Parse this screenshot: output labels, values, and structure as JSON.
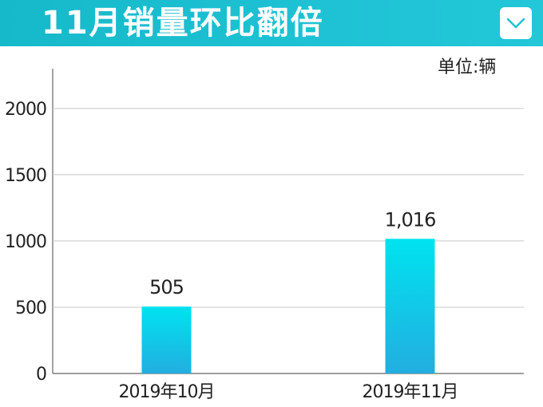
{
  "header": {
    "title": "11月销量环比翻倍",
    "menu_icon": "chevron-down-icon"
  },
  "unit_label": "单位:辆",
  "colors": {
    "header_bg": "#1ec2d4",
    "bar_top": "#00e3f0",
    "bar_bottom": "#22aee0",
    "grid": "#c8c8c8",
    "axis": "#666666"
  },
  "chart_data": {
    "type": "bar",
    "categories": [
      "2019年10月",
      "2019年11月"
    ],
    "values": [
      505,
      1016
    ],
    "value_labels": [
      "505",
      "1,016"
    ],
    "title": "",
    "xlabel": "",
    "ylabel": "",
    "ylim": [
      0,
      2300
    ],
    "yticks": [
      0,
      500,
      1000,
      1500,
      2000
    ],
    "ytick_labels": [
      "0",
      "500",
      "1000",
      "1500",
      "2000"
    ],
    "grid": true,
    "legend": "none"
  }
}
